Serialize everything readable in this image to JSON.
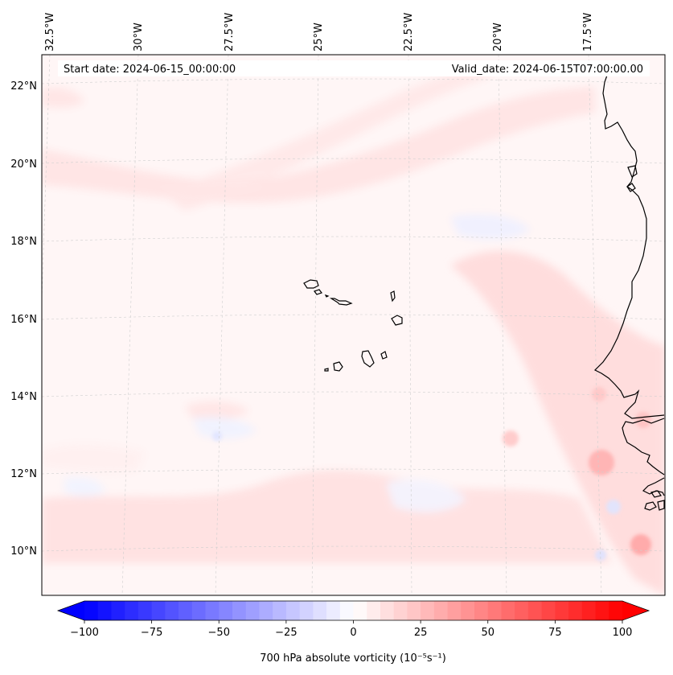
{
  "map": {
    "header": {
      "start_date": "Start date: 2024-06-15_00:00:00",
      "valid_date": "Valid_date: 2024-06-15T07:00:00.00"
    },
    "lon_labels": [
      {
        "lon": -32.5,
        "text": "32.5°W"
      },
      {
        "lon": -30.0,
        "text": "30°W"
      },
      {
        "lon": -27.5,
        "text": "27.5°W"
      },
      {
        "lon": -25.0,
        "text": "25°W"
      },
      {
        "lon": -22.5,
        "text": "22.5°W"
      },
      {
        "lon": -20.0,
        "text": "20°W"
      },
      {
        "lon": -17.5,
        "text": "17.5°W"
      }
    ],
    "lat_labels": [
      {
        "lat": 22,
        "text": "22°N"
      },
      {
        "lat": 20,
        "text": "20°N"
      },
      {
        "lat": 18,
        "text": "18°N"
      },
      {
        "lat": 16,
        "text": "16°N"
      },
      {
        "lat": 14,
        "text": "14°N"
      },
      {
        "lat": 12,
        "text": "12°N"
      },
      {
        "lat": 10,
        "text": "10°N"
      }
    ],
    "extent": {
      "lon_min": -32.6,
      "lon_max": -15.0,
      "lat_min": 8.9,
      "lat_max": 22.8
    },
    "field": "700 hPa absolute vorticity",
    "features": [
      "Cape Verde islands",
      "West African coastline (Mauritania, Senegal, Gambia, Guinea-Bissau)"
    ]
  },
  "colorbar": {
    "label": "700 hPa absolute vorticity (10⁻⁵s⁻¹)",
    "min": -100,
    "max": 100,
    "ticks": [
      {
        "value": -100,
        "text": "−100"
      },
      {
        "value": -75,
        "text": "−75"
      },
      {
        "value": -50,
        "text": "−50"
      },
      {
        "value": -25,
        "text": "−25"
      },
      {
        "value": 0,
        "text": "0"
      },
      {
        "value": 25,
        "text": "25"
      },
      {
        "value": 50,
        "text": "50"
      },
      {
        "value": 75,
        "text": "75"
      },
      {
        "value": 100,
        "text": "100"
      }
    ],
    "colors": {
      "negative": "#0000ff",
      "zero": "#ffffff",
      "positive": "#ff0000"
    }
  }
}
